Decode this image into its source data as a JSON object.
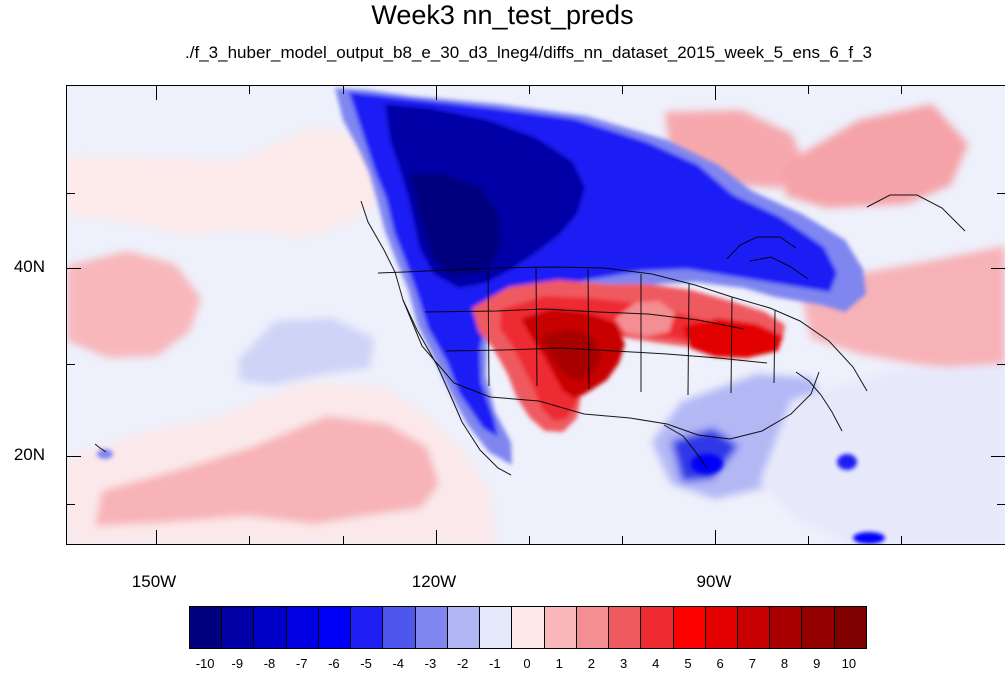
{
  "figure": {
    "title": "Week3 nn_test_preds",
    "subtitle": "./f_3_huber_model_output_b8_e_30_d3_lneg4/diffs_nn_dataset_2015_week_5_ens_6_f_3"
  },
  "map": {
    "projection": "cylindrical equidistant",
    "lon_range": [
      -160,
      -60
    ],
    "lat_range": [
      11,
      60
    ],
    "lon_ticks": [
      {
        "label": "150W",
        "value": -150
      },
      {
        "label": "120W",
        "value": -120
      },
      {
        "label": "90W",
        "value": -90
      }
    ],
    "lat_ticks": [
      {
        "label": "40N",
        "value": 40
      },
      {
        "label": "20N",
        "value": 20
      }
    ],
    "field_summary": {
      "strong_negative_region": "western North America and northern United States",
      "strong_positive_region": "southwestern and south-central United States and northern Mexico",
      "moderate_positive_regions": [
        "North Atlantic east of Canada",
        "subtropical eastern Pacific"
      ],
      "moderate_negative_regions": [
        "Gulf of Mexico and western Atlantic",
        "Caribbean Sea"
      ]
    }
  },
  "colorbar": {
    "labels": [
      "-10",
      "-9",
      "-8",
      "-7",
      "-6",
      "-5",
      "-4",
      "-3",
      "-2",
      "-1",
      "0",
      "1",
      "2",
      "3",
      "4",
      "5",
      "6",
      "7",
      "8",
      "9",
      "10"
    ],
    "colors": [
      "#00007f",
      "#0000a6",
      "#0000c7",
      "#0000e2",
      "#0000f8",
      "#1f1ff4",
      "#4f56ee",
      "#7f86f0",
      "#b3b6f5",
      "#e6e8fb",
      "#fde9ea",
      "#f9b7ba",
      "#f38e92",
      "#ef5a60",
      "#ee2b31",
      "#fd0000",
      "#e20000",
      "#c70000",
      "#a80000",
      "#920000",
      "#7f0000"
    ]
  }
}
